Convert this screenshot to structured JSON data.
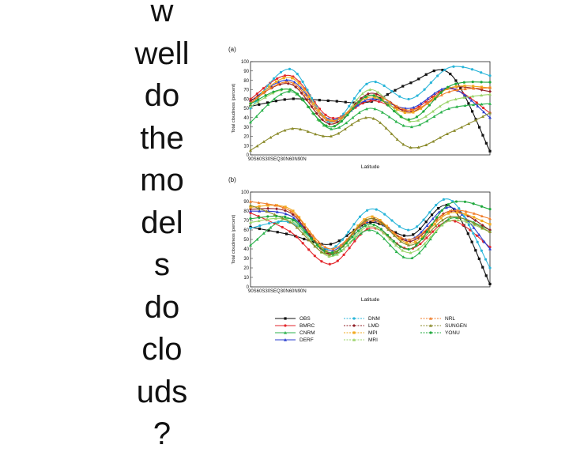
{
  "slide": {
    "lines": [
      "w",
      "well",
      "do",
      "the",
      "mo",
      "del",
      "s",
      "do",
      "clo",
      "uds",
      "?"
    ]
  },
  "chart_data": [
    {
      "type": "line",
      "panel_label": "(a)",
      "xlabel": "Latitude",
      "ylabel": "Total cloudiness (percent)",
      "x_tick_text": "90S60S30SEQ30N60N90N",
      "x": [
        -90,
        -60,
        -30,
        0,
        30,
        60,
        90
      ],
      "yticks": [
        0,
        10,
        20,
        30,
        40,
        50,
        60,
        70,
        80,
        90,
        100
      ],
      "ylim": [
        0,
        100
      ],
      "series": [
        {
          "name": "OBS",
          "values": [
            52,
            60,
            58,
            57,
            77,
            87,
            4
          ]
        },
        {
          "name": "BMRC",
          "values": [
            60,
            85,
            40,
            58,
            48,
            71,
            45
          ]
        },
        {
          "name": "CNRM",
          "values": [
            35,
            68,
            28,
            50,
            30,
            50,
            55
          ]
        },
        {
          "name": "DERF",
          "values": [
            58,
            80,
            38,
            60,
            50,
            72,
            40
          ]
        },
        {
          "name": "DNM",
          "values": [
            50,
            92,
            35,
            78,
            60,
            94,
            85
          ]
        },
        {
          "name": "LMD",
          "values": [
            58,
            76,
            33,
            66,
            46,
            72,
            68
          ]
        },
        {
          "name": "MPI",
          "values": [
            55,
            83,
            37,
            62,
            45,
            72,
            72
          ]
        },
        {
          "name": "MRI",
          "values": [
            52,
            70,
            30,
            70,
            36,
            58,
            65
          ]
        },
        {
          "name": "NRL",
          "values": [
            56,
            78,
            36,
            64,
            48,
            68,
            72
          ]
        },
        {
          "name": "SUNGEN",
          "values": [
            5,
            28,
            20,
            40,
            8,
            24,
            45
          ]
        },
        {
          "name": "YONU",
          "values": [
            55,
            70,
            30,
            64,
            38,
            74,
            78
          ]
        }
      ]
    },
    {
      "type": "line",
      "panel_label": "(b)",
      "xlabel": "Latitude",
      "ylabel": "Total cloudiness (percent)",
      "x_tick_text": "90S60S30SEQ30N60N90N",
      "x": [
        -90,
        -60,
        -30,
        0,
        30,
        60,
        90
      ],
      "yticks": [
        0,
        10,
        20,
        30,
        40,
        50,
        60,
        70,
        80,
        90,
        100
      ],
      "ylim": [
        0,
        100
      ],
      "series": [
        {
          "name": "OBS",
          "values": [
            63,
            55,
            45,
            68,
            54,
            85,
            3
          ]
        },
        {
          "name": "BMRC",
          "values": [
            78,
            58,
            24,
            62,
            40,
            70,
            42
          ]
        },
        {
          "name": "CNRM",
          "values": [
            44,
            72,
            34,
            60,
            30,
            72,
            60
          ]
        },
        {
          "name": "DERF",
          "values": [
            80,
            75,
            38,
            70,
            50,
            84,
            40
          ]
        },
        {
          "name": "DNM",
          "values": [
            62,
            68,
            40,
            82,
            60,
            92,
            20
          ]
        },
        {
          "name": "LMD",
          "values": [
            82,
            78,
            35,
            72,
            48,
            80,
            60
          ]
        },
        {
          "name": "MPI",
          "values": [
            84,
            82,
            36,
            74,
            46,
            78,
            66
          ]
        },
        {
          "name": "MRI",
          "values": [
            68,
            70,
            32,
            64,
            36,
            70,
            58
          ]
        },
        {
          "name": "NRL",
          "values": [
            90,
            80,
            40,
            70,
            50,
            80,
            72
          ]
        },
        {
          "name": "SUNGEN",
          "values": [
            86,
            68,
            34,
            72,
            44,
            74,
            58
          ]
        },
        {
          "name": "YONU",
          "values": [
            72,
            72,
            36,
            66,
            40,
            88,
            82
          ]
        }
      ]
    }
  ],
  "legend": {
    "placement": "bottom",
    "columns": [
      [
        {
          "name": "OBS",
          "color": "#111111",
          "marker": "square"
        },
        {
          "name": "BMRC",
          "color": "#e3262b",
          "marker": "circle"
        },
        {
          "name": "CNRM",
          "color": "#2bb24c",
          "marker": "triangle"
        },
        {
          "name": "DERF",
          "color": "#2b3fcf",
          "marker": "triangle"
        }
      ],
      [
        {
          "name": "DNM",
          "color": "#29b5d9",
          "marker": "circle"
        },
        {
          "name": "LMD",
          "color": "#8f1d24",
          "marker": "diamond"
        },
        {
          "name": "MPI",
          "color": "#f2a91f",
          "marker": "square"
        },
        {
          "name": "MRI",
          "color": "#9bd46a",
          "marker": "triangle"
        }
      ],
      [
        {
          "name": "NRL",
          "color": "#f07d2a",
          "marker": "triangle"
        },
        {
          "name": "SUNGEN",
          "color": "#8a8a2a",
          "marker": "triangle"
        },
        {
          "name": "YONU",
          "color": "#1ea83c",
          "marker": "circle"
        }
      ]
    ]
  }
}
